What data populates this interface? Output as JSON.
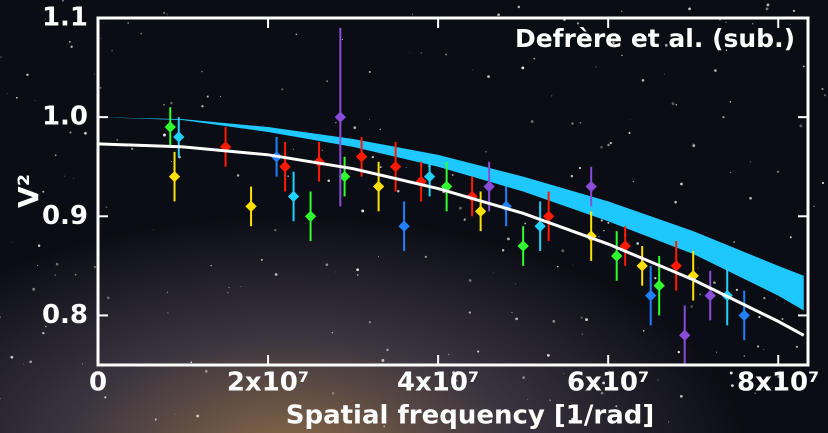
{
  "chart_data": {
    "type": "scatter",
    "annotation": "Defrère et al. (sub.)",
    "xlabel": "Spatial frequency [1/rad]",
    "ylabel": "V²",
    "xlim": [
      0,
      83500000
    ],
    "ylim": [
      0.75,
      1.1
    ],
    "xticks": [
      0,
      {
        "value": 20000000,
        "label": "2x10⁷"
      },
      {
        "value": 40000000,
        "label": "4x10⁷"
      },
      {
        "value": 60000000,
        "label": "6x10⁷"
      },
      {
        "value": 80000000,
        "label": "8x10⁷"
      }
    ],
    "yticks": [
      0.8,
      0.9,
      {
        "value": 1.0,
        "label": "1.0"
      },
      1.1
    ],
    "band": {
      "color": "#1ec8ff",
      "x": [
        0,
        10000000,
        20000000,
        30000000,
        40000000,
        50000000,
        60000000,
        70000000,
        80000000,
        83000000
      ],
      "upper": [
        1.0,
        0.998,
        0.99,
        0.978,
        0.962,
        0.94,
        0.915,
        0.885,
        0.85,
        0.84
      ],
      "lower": [
        1.0,
        0.997,
        0.985,
        0.97,
        0.95,
        0.925,
        0.895,
        0.862,
        0.82,
        0.805
      ]
    },
    "curve": {
      "color": "#ffffff",
      "x": [
        0,
        10000000,
        20000000,
        30000000,
        40000000,
        50000000,
        60000000,
        70000000,
        80000000,
        83000000
      ],
      "values": [
        0.973,
        0.97,
        0.962,
        0.948,
        0.928,
        0.903,
        0.872,
        0.836,
        0.794,
        0.78
      ]
    },
    "series": [
      {
        "color": "#ff1a00",
        "x": [
          15000000,
          22000000,
          26000000,
          31000000,
          35000000,
          38000000,
          44000000,
          53000000,
          62000000,
          68000000
        ],
        "values": [
          0.97,
          0.95,
          0.955,
          0.96,
          0.95,
          0.935,
          0.92,
          0.9,
          0.87,
          0.85
        ],
        "errors": [
          0.02,
          0.025,
          0.02,
          0.02,
          0.025,
          0.02,
          0.02,
          0.025,
          0.02,
          0.025
        ]
      },
      {
        "color": "#ffe000",
        "x": [
          9000000,
          18000000,
          33000000,
          45000000,
          58000000,
          64000000,
          70000000
        ],
        "values": [
          0.94,
          0.91,
          0.93,
          0.905,
          0.88,
          0.85,
          0.84
        ],
        "errors": [
          0.025,
          0.02,
          0.025,
          0.02,
          0.025,
          0.02,
          0.025
        ]
      },
      {
        "color": "#30ff30",
        "x": [
          8500000,
          25000000,
          29000000,
          41000000,
          50000000,
          61000000,
          66000000
        ],
        "values": [
          0.99,
          0.9,
          0.94,
          0.93,
          0.87,
          0.86,
          0.83
        ],
        "errors": [
          0.02,
          0.025,
          0.02,
          0.025,
          0.02,
          0.025,
          0.03
        ]
      },
      {
        "color": "#20d0ff",
        "x": [
          9500000,
          23000000,
          39000000,
          52000000,
          74000000
        ],
        "values": [
          0.98,
          0.92,
          0.94,
          0.89,
          0.82
        ],
        "errors": [
          0.02,
          0.025,
          0.02,
          0.025,
          0.03
        ]
      },
      {
        "color": "#2080ff",
        "x": [
          21000000,
          36000000,
          48000000,
          65000000,
          76000000
        ],
        "values": [
          0.96,
          0.89,
          0.91,
          0.82,
          0.8
        ],
        "errors": [
          0.02,
          0.025,
          0.02,
          0.03,
          0.025
        ]
      },
      {
        "color": "#8a4cd8",
        "x": [
          28500000,
          46000000,
          58000000,
          69000000,
          72000000
        ],
        "values": [
          1.0,
          0.93,
          0.93,
          0.78,
          0.82
        ],
        "errors": [
          0.09,
          0.025,
          0.02,
          0.03,
          0.025
        ]
      }
    ]
  }
}
